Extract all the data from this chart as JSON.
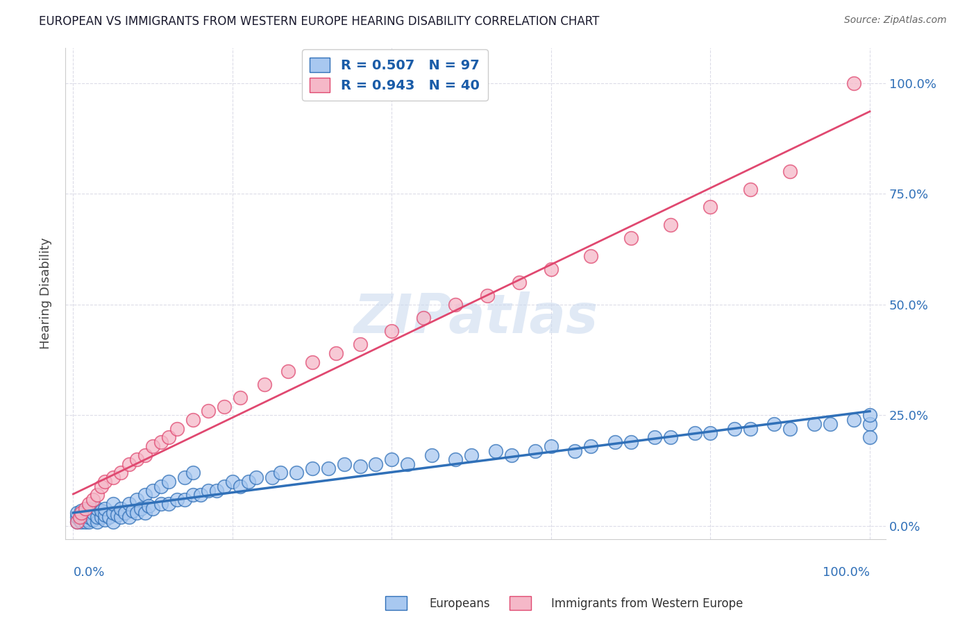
{
  "title": "EUROPEAN VS IMMIGRANTS FROM WESTERN EUROPE HEARING DISABILITY CORRELATION CHART",
  "source": "Source: ZipAtlas.com",
  "ylabel": "Hearing Disability",
  "ytick_labels": [
    "0.0%",
    "25.0%",
    "50.0%",
    "75.0%",
    "100.0%"
  ],
  "ytick_values": [
    0,
    25,
    50,
    75,
    100
  ],
  "xtick_values": [
    0,
    20,
    40,
    60,
    80,
    100
  ],
  "blue_color": "#a8c8f0",
  "pink_color": "#f5b8c8",
  "blue_line_color": "#3070b8",
  "pink_line_color": "#e04870",
  "watermark": "ZIPatlas",
  "background_color": "#ffffff",
  "grid_color": "#dcdce8",
  "blue_R": 0.507,
  "blue_N": 97,
  "pink_R": 0.943,
  "pink_N": 40,
  "blue_x": [
    0.5,
    0.5,
    0.5,
    0.8,
    1.0,
    1.0,
    1.0,
    1.2,
    1.5,
    1.5,
    1.5,
    1.8,
    2.0,
    2.0,
    2.0,
    2.0,
    2.5,
    2.5,
    3.0,
    3.0,
    3.0,
    3.5,
    3.5,
    4.0,
    4.0,
    4.0,
    4.5,
    5.0,
    5.0,
    5.0,
    5.5,
    6.0,
    6.0,
    6.5,
    7.0,
    7.0,
    7.5,
    8.0,
    8.0,
    8.5,
    9.0,
    9.0,
    9.5,
    10.0,
    10.0,
    11.0,
    11.0,
    12.0,
    12.0,
    13.0,
    14.0,
    14.0,
    15.0,
    15.0,
    16.0,
    17.0,
    18.0,
    19.0,
    20.0,
    21.0,
    22.0,
    23.0,
    25.0,
    26.0,
    28.0,
    30.0,
    32.0,
    34.0,
    36.0,
    38.0,
    40.0,
    42.0,
    45.0,
    48.0,
    50.0,
    53.0,
    55.0,
    58.0,
    60.0,
    63.0,
    65.0,
    68.0,
    70.0,
    73.0,
    75.0,
    78.0,
    80.0,
    83.0,
    85.0,
    88.0,
    90.0,
    93.0,
    95.0,
    98.0,
    100.0,
    100.0,
    100.0
  ],
  "blue_y": [
    1.0,
    2.0,
    3.0,
    1.5,
    1.0,
    2.5,
    3.5,
    2.0,
    1.0,
    2.0,
    3.0,
    1.5,
    1.0,
    2.0,
    3.0,
    4.0,
    1.5,
    3.0,
    1.0,
    2.0,
    4.0,
    2.0,
    3.5,
    1.5,
    2.5,
    4.0,
    2.0,
    1.0,
    3.0,
    5.0,
    2.5,
    2.0,
    4.0,
    3.0,
    2.0,
    5.0,
    3.5,
    3.0,
    6.0,
    4.0,
    3.0,
    7.0,
    4.5,
    4.0,
    8.0,
    5.0,
    9.0,
    5.0,
    10.0,
    6.0,
    6.0,
    11.0,
    7.0,
    12.0,
    7.0,
    8.0,
    8.0,
    9.0,
    10.0,
    9.0,
    10.0,
    11.0,
    11.0,
    12.0,
    12.0,
    13.0,
    13.0,
    14.0,
    13.5,
    14.0,
    15.0,
    14.0,
    16.0,
    15.0,
    16.0,
    17.0,
    16.0,
    17.0,
    18.0,
    17.0,
    18.0,
    19.0,
    19.0,
    20.0,
    20.0,
    21.0,
    21.0,
    22.0,
    22.0,
    23.0,
    22.0,
    23.0,
    23.0,
    24.0,
    23.0,
    25.0,
    20.0
  ],
  "pink_x": [
    0.5,
    0.8,
    1.0,
    1.5,
    2.0,
    2.5,
    3.0,
    3.5,
    4.0,
    5.0,
    6.0,
    7.0,
    8.0,
    9.0,
    10.0,
    11.0,
    12.0,
    13.0,
    15.0,
    17.0,
    19.0,
    21.0,
    24.0,
    27.0,
    30.0,
    33.0,
    36.0,
    40.0,
    44.0,
    48.0,
    52.0,
    56.0,
    60.0,
    65.0,
    70.0,
    75.0,
    80.0,
    85.0,
    90.0,
    98.0
  ],
  "pink_y": [
    1.0,
    2.0,
    3.0,
    4.0,
    5.0,
    6.0,
    7.0,
    9.0,
    10.0,
    11.0,
    12.0,
    14.0,
    15.0,
    16.0,
    18.0,
    19.0,
    20.0,
    22.0,
    24.0,
    26.0,
    27.0,
    29.0,
    32.0,
    35.0,
    37.0,
    39.0,
    41.0,
    44.0,
    47.0,
    50.0,
    52.0,
    55.0,
    58.0,
    61.0,
    65.0,
    68.0,
    72.0,
    76.0,
    80.0,
    100.0
  ]
}
